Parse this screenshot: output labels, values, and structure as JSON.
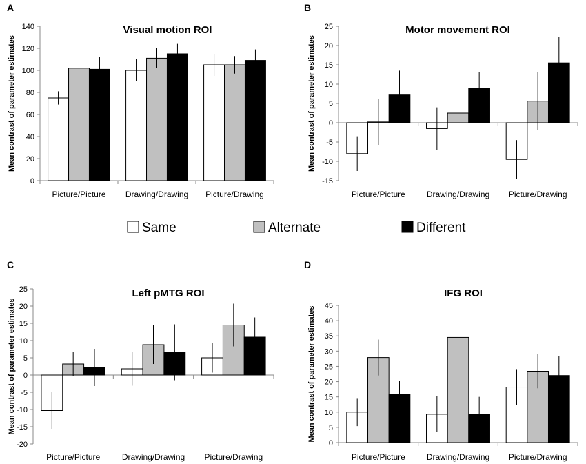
{
  "legend": {
    "items": [
      {
        "label": "Same",
        "color": "#ffffff"
      },
      {
        "label": "Alternate",
        "color": "#c0c0c0"
      },
      {
        "label": "Different",
        "color": "#000000"
      }
    ]
  },
  "chart_data": [
    {
      "panel": "A",
      "type": "bar",
      "title": "Visual motion ROI",
      "ylabel": "Mean contrast of parameter estimates",
      "xlabel": "",
      "categories": [
        "Picture/Picture",
        "Drawing/Drawing",
        "Picture/Drawing"
      ],
      "ylim": [
        0,
        140
      ],
      "yticks": [
        0,
        20,
        40,
        60,
        80,
        100,
        120,
        140
      ],
      "series": [
        {
          "name": "Same",
          "values": [
            75,
            100,
            105
          ],
          "errors": [
            6,
            10,
            10
          ]
        },
        {
          "name": "Alternate",
          "values": [
            102,
            111,
            105
          ],
          "errors": [
            6,
            9,
            8
          ]
        },
        {
          "name": "Different",
          "values": [
            101,
            115,
            109
          ],
          "errors": [
            11,
            9,
            10
          ]
        }
      ]
    },
    {
      "panel": "B",
      "type": "bar",
      "title": "Motor movement ROI",
      "ylabel": "Mean contrast of parameter estimates",
      "xlabel": "",
      "categories": [
        "Picture/Picture",
        "Drawing/Drawing",
        "Picture/Drawing"
      ],
      "ylim": [
        -15,
        25
      ],
      "yticks": [
        -15,
        -10,
        -5,
        0,
        5,
        10,
        15,
        20,
        25
      ],
      "series": [
        {
          "name": "Same",
          "values": [
            -8.0,
            -1.5,
            -9.5
          ],
          "errors": [
            4.5,
            5.5,
            5.0
          ]
        },
        {
          "name": "Alternate",
          "values": [
            0.2,
            2.5,
            5.6
          ],
          "errors": [
            6.0,
            5.5,
            7.5
          ]
        },
        {
          "name": "Different",
          "values": [
            7.2,
            9.0,
            15.5
          ],
          "errors": [
            6.3,
            4.2,
            6.7
          ]
        }
      ]
    },
    {
      "panel": "C",
      "type": "bar",
      "title": "Left pMTG ROI",
      "ylabel": "Mean contrast of parameter estimates",
      "xlabel": "",
      "categories": [
        "Picture/Picture",
        "Drawing/Drawing",
        "Picture/Drawing"
      ],
      "ylim": [
        -20,
        25
      ],
      "yticks": [
        -20,
        -15,
        -10,
        -5,
        0,
        5,
        10,
        15,
        20,
        25
      ],
      "series": [
        {
          "name": "Same",
          "values": [
            -10.3,
            1.8,
            5.0
          ],
          "errors": [
            5.3,
            4.9,
            4.3
          ]
        },
        {
          "name": "Alternate",
          "values": [
            3.2,
            8.8,
            14.5
          ],
          "errors": [
            3.5,
            5.6,
            6.2
          ]
        },
        {
          "name": "Different",
          "values": [
            2.2,
            6.6,
            11.0
          ],
          "errors": [
            5.4,
            8.1,
            5.7
          ]
        }
      ]
    },
    {
      "panel": "D",
      "type": "bar",
      "title": "IFG ROI",
      "ylabel": "Mean contrast of parameter estimates",
      "xlabel": "",
      "categories": [
        "Picture/Picture",
        "Drawing/Drawing",
        "Picture/Drawing"
      ],
      "ylim": [
        0,
        45
      ],
      "yticks": [
        0,
        5,
        10,
        15,
        20,
        25,
        30,
        35,
        40,
        45
      ],
      "series": [
        {
          "name": "Same",
          "values": [
            10.0,
            9.3,
            18.2
          ],
          "errors": [
            4.6,
            5.9,
            5.9
          ]
        },
        {
          "name": "Alternate",
          "values": [
            27.9,
            34.5,
            23.4
          ],
          "errors": [
            5.9,
            7.7,
            5.6
          ]
        },
        {
          "name": "Different",
          "values": [
            15.8,
            9.3,
            22.0
          ],
          "errors": [
            4.5,
            5.7,
            6.3
          ]
        }
      ]
    }
  ]
}
